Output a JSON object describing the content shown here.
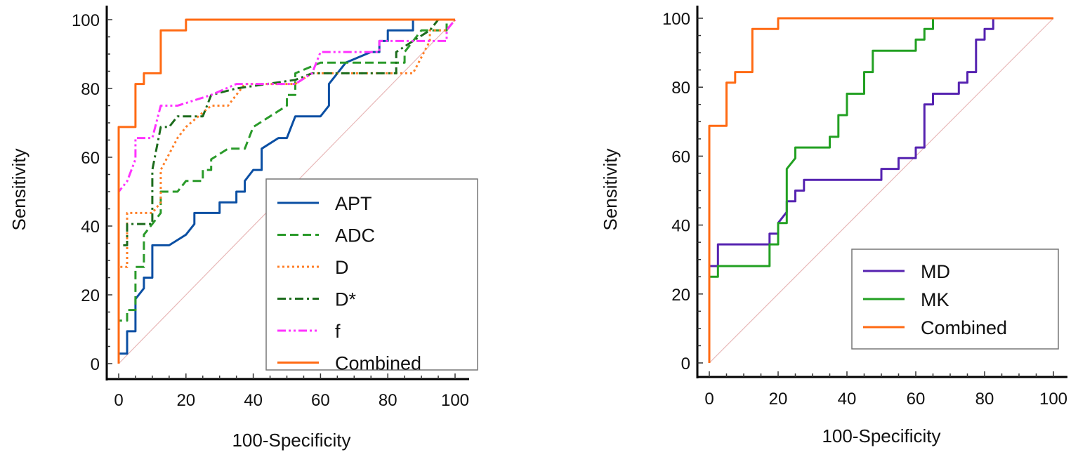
{
  "chart_data": [
    {
      "type": "line",
      "title": "",
      "xlabel": "100-Specificity",
      "ylabel": "Sensitivity",
      "xlim": [
        0,
        100
      ],
      "ylim": [
        0,
        100
      ],
      "xticks": [
        "0",
        "20",
        "40",
        "60",
        "80",
        "100"
      ],
      "yticks": [
        "0",
        "20",
        "40",
        "60",
        "80",
        "100"
      ],
      "grid": false,
      "legend_position": "bottom-right",
      "reference_line": "diagonal",
      "series": [
        {
          "name": "APT",
          "color": "#0b4fa3",
          "dash": "solid",
          "points": [
            [
              0,
              0
            ],
            [
              0,
              2.9
            ],
            [
              2.5,
              2.9
            ],
            [
              2.5,
              9.4
            ],
            [
              5,
              9.4
            ],
            [
              5,
              18.8
            ],
            [
              7.5,
              21.9
            ],
            [
              7.5,
              25
            ],
            [
              10,
              25
            ],
            [
              10,
              34.4
            ],
            [
              15,
              34.4
            ],
            [
              20,
              37.5
            ],
            [
              22.5,
              40.6
            ],
            [
              22.5,
              43.8
            ],
            [
              30,
              43.8
            ],
            [
              30,
              46.9
            ],
            [
              35,
              46.9
            ],
            [
              35,
              50
            ],
            [
              37.5,
              50
            ],
            [
              37.5,
              53.1
            ],
            [
              40,
              56.3
            ],
            [
              42.5,
              56.3
            ],
            [
              42.5,
              62.5
            ],
            [
              47.5,
              65.6
            ],
            [
              50,
              65.6
            ],
            [
              52.5,
              71.9
            ],
            [
              60,
              71.9
            ],
            [
              62.5,
              75
            ],
            [
              62.5,
              81.3
            ],
            [
              65,
              84.4
            ],
            [
              67.5,
              87.5
            ],
            [
              75,
              90.6
            ],
            [
              77.5,
              90.6
            ],
            [
              77.5,
              93.8
            ],
            [
              80,
              93.8
            ],
            [
              80,
              96.9
            ],
            [
              87.5,
              96.9
            ],
            [
              87.5,
              100
            ],
            [
              100,
              100
            ]
          ]
        },
        {
          "name": "ADC",
          "color": "#2a9a2a",
          "dash": "dashed",
          "points": [
            [
              0,
              0
            ],
            [
              0,
              12.5
            ],
            [
              2.5,
              12.5
            ],
            [
              2.5,
              15.6
            ],
            [
              5,
              15.6
            ],
            [
              5,
              28.1
            ],
            [
              7.5,
              28.1
            ],
            [
              7.5,
              37.5
            ],
            [
              10,
              40.6
            ],
            [
              12.5,
              43.8
            ],
            [
              12.5,
              50
            ],
            [
              17.5,
              50
            ],
            [
              20,
              53.1
            ],
            [
              25,
              53.1
            ],
            [
              25,
              56.3
            ],
            [
              27.5,
              56.3
            ],
            [
              27.5,
              59.4
            ],
            [
              32.5,
              62.5
            ],
            [
              37.5,
              62.5
            ],
            [
              40,
              68.8
            ],
            [
              50,
              75
            ],
            [
              50,
              78.1
            ],
            [
              52.5,
              78.1
            ],
            [
              52.5,
              84.4
            ],
            [
              60,
              87.5
            ],
            [
              85,
              87.5
            ],
            [
              85,
              90.6
            ],
            [
              90,
              96.9
            ],
            [
              97.5,
              96.9
            ],
            [
              97.5,
              100
            ],
            [
              100,
              100
            ]
          ]
        },
        {
          "name": "D",
          "color": "#ff7f27",
          "dash": "dotted",
          "points": [
            [
              0,
              0
            ],
            [
              0,
              28.1
            ],
            [
              2.5,
              28.1
            ],
            [
              2.5,
              43.8
            ],
            [
              10,
              43.8
            ],
            [
              12.5,
              46.9
            ],
            [
              12.5,
              56.3
            ],
            [
              17.5,
              65.6
            ],
            [
              20,
              68.8
            ],
            [
              25,
              73
            ],
            [
              27.5,
              75
            ],
            [
              32.5,
              75
            ],
            [
              37.5,
              81.3
            ],
            [
              52.5,
              81.3
            ],
            [
              57.5,
              84.4
            ],
            [
              87.5,
              84.4
            ],
            [
              92.5,
              93.8
            ],
            [
              92.5,
              96.9
            ],
            [
              97.5,
              96.9
            ],
            [
              100,
              100
            ]
          ]
        },
        {
          "name": "D*",
          "color": "#1c6b1c",
          "dash": "dashdot",
          "points": [
            [
              0,
              0
            ],
            [
              0,
              34.4
            ],
            [
              2.5,
              34.4
            ],
            [
              2.5,
              40.6
            ],
            [
              10,
              40.6
            ],
            [
              10,
              56.3
            ],
            [
              12.5,
              68.8
            ],
            [
              15,
              68.8
            ],
            [
              17.5,
              71.9
            ],
            [
              25,
              71.9
            ],
            [
              27.5,
              78.1
            ],
            [
              35,
              80
            ],
            [
              52.5,
              82.5
            ],
            [
              57.5,
              84.4
            ],
            [
              82.5,
              84.4
            ],
            [
              82.5,
              90.6
            ],
            [
              87.5,
              93.8
            ],
            [
              92.5,
              96.9
            ],
            [
              95,
              100
            ],
            [
              100,
              100
            ]
          ]
        },
        {
          "name": "f",
          "color": "#ff33ff",
          "dash": "dashdotdot",
          "points": [
            [
              0,
              0
            ],
            [
              0,
              50
            ],
            [
              2.5,
              53
            ],
            [
              5,
              59.4
            ],
            [
              5,
              65.6
            ],
            [
              10,
              65.6
            ],
            [
              12.5,
              75
            ],
            [
              17.5,
              75
            ],
            [
              27.5,
              78.1
            ],
            [
              35,
              81.3
            ],
            [
              52.5,
              81.3
            ],
            [
              57.5,
              84.4
            ],
            [
              60,
              90.6
            ],
            [
              77.5,
              90.6
            ],
            [
              77.5,
              93.8
            ],
            [
              97.5,
              93.8
            ],
            [
              97.5,
              96.9
            ],
            [
              100,
              100
            ]
          ]
        },
        {
          "name": "Combined",
          "color": "#ff6a13",
          "dash": "solid",
          "points": [
            [
              0,
              0
            ],
            [
              0,
              68.8
            ],
            [
              5,
              68.8
            ],
            [
              5,
              81.3
            ],
            [
              7.5,
              81.3
            ],
            [
              7.5,
              84.4
            ],
            [
              12.5,
              84.4
            ],
            [
              12.5,
              96.9
            ],
            [
              20,
              96.9
            ],
            [
              20,
              100
            ],
            [
              100,
              100
            ]
          ]
        }
      ]
    },
    {
      "type": "line",
      "title": "",
      "xlabel": "100-Specificity",
      "ylabel": "Sensitivity",
      "xlim": [
        0,
        100
      ],
      "ylim": [
        0,
        100
      ],
      "xticks": [
        "0",
        "20",
        "40",
        "60",
        "80",
        "100"
      ],
      "yticks": [
        "0",
        "20",
        "40",
        "60",
        "80",
        "100"
      ],
      "grid": false,
      "legend_position": "bottom-right",
      "reference_line": "diagonal",
      "series": [
        {
          "name": "MD",
          "color": "#5522b0",
          "dash": "solid",
          "points": [
            [
              0,
              0
            ],
            [
              0,
              28.1
            ],
            [
              2.5,
              28.1
            ],
            [
              2.5,
              34.4
            ],
            [
              17.5,
              34.4
            ],
            [
              17.5,
              37.5
            ],
            [
              20,
              37.5
            ],
            [
              20,
              40.6
            ],
            [
              22.5,
              43.8
            ],
            [
              22.5,
              46.9
            ],
            [
              25,
              46.9
            ],
            [
              25,
              50
            ],
            [
              27.5,
              50
            ],
            [
              27.5,
              53.1
            ],
            [
              50,
              53.1
            ],
            [
              50,
              56.3
            ],
            [
              55,
              56.3
            ],
            [
              55,
              59.4
            ],
            [
              60,
              59.4
            ],
            [
              60,
              62.5
            ],
            [
              62.5,
              62.5
            ],
            [
              62.5,
              75
            ],
            [
              65,
              75
            ],
            [
              65,
              78.1
            ],
            [
              72.5,
              78.1
            ],
            [
              72.5,
              81.3
            ],
            [
              75,
              81.3
            ],
            [
              75,
              84.4
            ],
            [
              77.5,
              84.4
            ],
            [
              77.5,
              93.8
            ],
            [
              80,
              93.8
            ],
            [
              80,
              96.9
            ],
            [
              82.5,
              96.9
            ],
            [
              82.5,
              100
            ],
            [
              100,
              100
            ]
          ]
        },
        {
          "name": "MK",
          "color": "#22a022",
          "dash": "solid",
          "points": [
            [
              0,
              0
            ],
            [
              0,
              25
            ],
            [
              2.5,
              25
            ],
            [
              2.5,
              28.1
            ],
            [
              17.5,
              28.1
            ],
            [
              17.5,
              34.4
            ],
            [
              20,
              34.4
            ],
            [
              20,
              40.6
            ],
            [
              22.5,
              40.6
            ],
            [
              22.5,
              56.3
            ],
            [
              25,
              59.4
            ],
            [
              25,
              62.5
            ],
            [
              35,
              62.5
            ],
            [
              35,
              65.6
            ],
            [
              37.5,
              65.6
            ],
            [
              37.5,
              71.9
            ],
            [
              40,
              71.9
            ],
            [
              40,
              78.1
            ],
            [
              45,
              78.1
            ],
            [
              45,
              84.4
            ],
            [
              47.5,
              84.4
            ],
            [
              47.5,
              90.6
            ],
            [
              60,
              90.6
            ],
            [
              60,
              93.8
            ],
            [
              62.5,
              93.8
            ],
            [
              62.5,
              96.9
            ],
            [
              65,
              96.9
            ],
            [
              65,
              100
            ],
            [
              100,
              100
            ]
          ]
        },
        {
          "name": "Combined",
          "color": "#ff6a13",
          "dash": "solid",
          "points": [
            [
              0,
              0
            ],
            [
              0,
              68.8
            ],
            [
              5,
              68.8
            ],
            [
              5,
              81.3
            ],
            [
              7.5,
              81.3
            ],
            [
              7.5,
              84.4
            ],
            [
              12.5,
              84.4
            ],
            [
              12.5,
              96.9
            ],
            [
              20,
              96.9
            ],
            [
              20,
              100
            ],
            [
              100,
              100
            ]
          ]
        }
      ]
    }
  ]
}
